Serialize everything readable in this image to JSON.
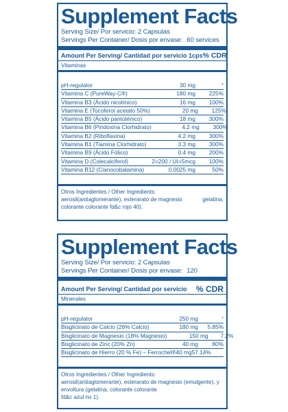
{
  "panels": [
    {
      "title": "Supplement Facts",
      "serving_size": "Serving Size/ Por servicio: 2 Capsulas",
      "servings_label": "Servings Per Container/ Dosis por envase:",
      "servings_value": "60 services",
      "header_amount": "Amount Per Serving/ Cantidad por servicio 1cps",
      "header_pct": "% CDR",
      "section": "Vitaminas",
      "rows": [
        {
          "name": "pH-regulator",
          "amount": "30 mg",
          "pct": "*"
        },
        {
          "name": "Vitamina C (PureWay-C®)",
          "amount": "180 mg",
          "pct": "225%"
        },
        {
          "name": "Vitamina B3 (Ácido nicotínico)",
          "amount": "16 mg",
          "pct": "100%"
        },
        {
          "name": "Vitamina E (Tocoferol acetato 50%)",
          "amount": "20 mg",
          "pct": "125%"
        },
        {
          "name": "Vitamina B5 (Ácido pantoténico)",
          "amount": "18 mg",
          "pct": "300%"
        },
        {
          "name": "Vitamina B6 (Piridoxina Clorhidrato)",
          "amount": "4.2 mg",
          "pct": "300%"
        },
        {
          "name": "Vitamina B2 (Riboflavina)",
          "amount": "4.2 mg",
          "pct": "300%"
        },
        {
          "name": "Vitamina B1 (Tiamina Clorhidrato)",
          "amount": "3.3 mg",
          "pct": "300%"
        },
        {
          "name": "Vitamina B9 (Ácido Fólico)",
          "amount": "0.4 mg",
          "pct": "200%"
        },
        {
          "name": "Vitamina D (Colecalciferol)",
          "amount": "2=200 / UI=5mcg",
          "pct": "100%"
        },
        {
          "name": "Vitamina B12 (Cianocobalamina)",
          "amount": "0.0025 mg",
          "pct": "50%"
        }
      ],
      "other_title": "Otros Ingredientes / Other Ingredients:",
      "other_line2a": "aerosil(antiaglomerante), esterarato de magnesio",
      "other_line2b": "gelatina,",
      "other_line3": "colorante colorante fd&c rojo 40)."
    },
    {
      "title": "Supplement Facts",
      "serving_size": "Serving Size/ Por servicio: 2 Capsulas",
      "servings_label": "Servings Per Container/ Dosis por envase:",
      "servings_value": "120",
      "header_amount": "Amount Per Serving/ Cantidad por servicio",
      "header_pct": "% CDR",
      "section": "Minerales",
      "rows": [
        {
          "name": "pH-regulator",
          "amount": "250 mg",
          "pct": "*"
        },
        {
          "name": "Bisglicinato de Calcio (26% Calcio)",
          "amount": "180 mg",
          "pct": "5.85%"
        },
        {
          "name": "Bisglicinato de Magnesio (18% Magnesio)",
          "amount": "150 mg",
          "pct": "7.2%"
        },
        {
          "name": "Bisglicinato de Zinc (20% Zn)",
          "amount": "40 mg",
          "pct": "80%"
        },
        {
          "name": "Bisglicinato de Hierro (20 % Fe) – Ferrochel®40 mg57.14%",
          "amount": "",
          "pct": ""
        }
      ],
      "other_title": "Otros Ingredientes / Other Ingredients:",
      "other_line2a": "aerosil(antiaglomerante), esterarato de magnesio (emulgente), y",
      "other_line3": "envoltura (gelatina, colorante colorante",
      "other_line4": "fd&c azul no 1)."
    }
  ],
  "colors": {
    "primary": "#1b5a96",
    "background": "#ffffff"
  }
}
